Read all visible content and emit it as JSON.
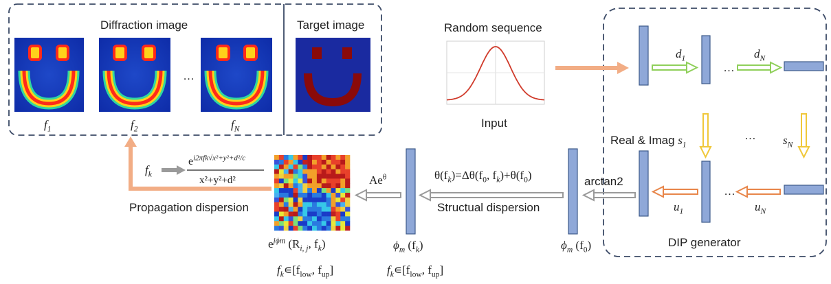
{
  "diffraction": {
    "title": "Diffraction image",
    "ellipsis": "…",
    "freq_labels": [
      {
        "base": "f",
        "sub": "1"
      },
      {
        "base": "f",
        "sub": "2"
      },
      {
        "base": "f",
        "sub": "N"
      }
    ]
  },
  "target": {
    "title": "Target image"
  },
  "random_sequence": {
    "title": "Random sequence",
    "input_label": "Input"
  },
  "dip_generator": {
    "title": "DIP generator",
    "d1": {
      "base": "d",
      "sub": "1"
    },
    "dN": {
      "base": "d",
      "sub": "N"
    },
    "s1": {
      "base": "s",
      "sub": "1"
    },
    "sN": {
      "base": "s",
      "sub": "N"
    },
    "u1": {
      "base": "u",
      "sub": "1"
    },
    "uN": {
      "base": "u",
      "sub": "N"
    },
    "real_imag_label": "Real & Imag",
    "ellipsis": "…"
  },
  "arctan_label": "arctan2",
  "structural": {
    "label": "Structual dispersion",
    "formula": {
      "lhs": "θ(f",
      "lhs_sub": "k",
      "mid": ")=Δθ(f",
      "mid_sub0": "0",
      "mid2": ", f",
      "mid_sub1": "k",
      "mid3": ")+θ(f",
      "mid_sub2": "0",
      "end": ")"
    }
  },
  "amplitude": {
    "base": "Ae",
    "sup": "θ"
  },
  "phi_f0": {
    "base": "ϕ",
    "sub": "m",
    "arg": "(f",
    "arg_sub": "0",
    "close": ")"
  },
  "phi_fk": {
    "base": "ϕ",
    "sub": "m",
    "arg": "(f",
    "arg_sub": "k",
    "close": ")"
  },
  "phase_term": {
    "base": "e",
    "sup": "jϕm",
    "args": "(R",
    "args_sub": "i, j",
    "args_mid": ", f",
    "args_sub2": "k",
    "close": ")"
  },
  "freq_range": {
    "text": "f",
    "sub": "k",
    "in": "∊[f",
    "low": "low",
    "mid": ", f",
    "up": "up",
    "close": "]"
  },
  "propagation": {
    "label": "Propagation dispersion",
    "fk": {
      "base": "f",
      "sub": "k"
    },
    "numerator": "e",
    "numerator_sup": "i2πfk√x²+y²+d²/c",
    "denominator": "x²+y²+d²"
  },
  "colors": {
    "dash_border": "#3b4a66",
    "block_fill": "#8fa8d8",
    "block_stroke": "#3d5a8a",
    "green_arrow": "#8fcf5a",
    "yellow_arrow": "#f0c83a",
    "orange_arrow": "#e8864a",
    "gray_arrow": "#9a9a9a",
    "salmon_arrow": "#f2ad85",
    "gauss_curve": "#d03a2a",
    "target_shape": "#8a0a0a",
    "target_bg": "#1a2aa0",
    "diff_bg": "#1030b0"
  }
}
